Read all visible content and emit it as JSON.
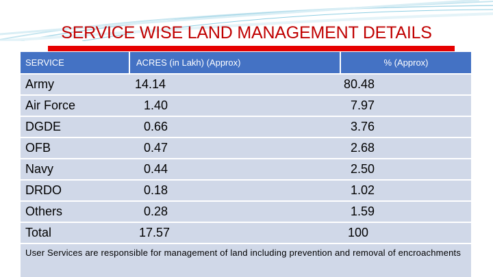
{
  "title": "SERVICE WISE LAND MANAGEMENT DETAILS",
  "table": {
    "headers": [
      "SERVICE",
      "ACRES (in Lakh) (Approx)",
      "% (Approx)"
    ],
    "rows": [
      [
        "Army",
        "14.14",
        "80.48"
      ],
      [
        "Air Force",
        "1.40",
        "7.97"
      ],
      [
        "DGDE",
        "0.66",
        "3.76"
      ],
      [
        "OFB",
        "0.47",
        "2.68"
      ],
      [
        "Navy",
        "0.44",
        "2.50"
      ],
      [
        "DRDO",
        "0.18",
        "1.02"
      ],
      [
        "Others",
        "0.28",
        "1.59"
      ],
      [
        "Total",
        "17.57",
        "100"
      ]
    ]
  },
  "note": "User Services are responsible for management of land including prevention and removal of encroachments",
  "colors": {
    "title": "#c00000",
    "title_bar": "#e60000",
    "header_bg": "#4472c4",
    "row_bg": "#d0d8e8",
    "decor": "#5bb8d6"
  }
}
